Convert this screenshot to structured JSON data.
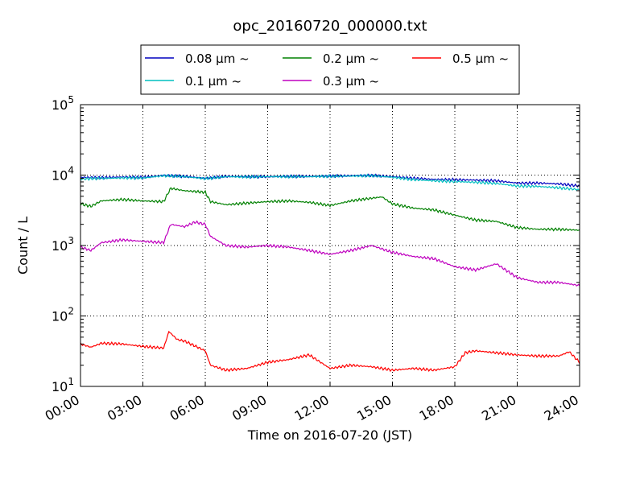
{
  "chart_data": {
    "type": "line",
    "title": "opc_20160720_000000.txt",
    "xlabel": "Time on 2016-07-20 (JST)",
    "ylabel": "Count / L",
    "y_scale": "log",
    "ylim": [
      10,
      100000
    ],
    "xlim": [
      "00:00",
      "24:00"
    ],
    "x_ticks": [
      "00:00",
      "03:00",
      "06:00",
      "09:00",
      "12:00",
      "15:00",
      "18:00",
      "21:00",
      "24:00"
    ],
    "y_ticks": [
      {
        "base": "10",
        "exp": "1"
      },
      {
        "base": "10",
        "exp": "2"
      },
      {
        "base": "10",
        "exp": "3"
      },
      {
        "base": "10",
        "exp": "4"
      },
      {
        "base": "10",
        "exp": "5"
      }
    ],
    "grid": true,
    "legend_position": "above plot",
    "series": [
      {
        "name": "0.08 μm ~",
        "color": "#0000bf",
        "x": [
          "00:00",
          "01:00",
          "02:00",
          "03:00",
          "04:00",
          "05:00",
          "06:00",
          "07:00",
          "08:00",
          "09:00",
          "10:00",
          "11:00",
          "12:00",
          "13:00",
          "14:00",
          "15:00",
          "16:00",
          "17:00",
          "18:00",
          "19:00",
          "20:00",
          "21:00",
          "22:00",
          "23:00",
          "24:00"
        ],
        "y": [
          9300,
          9200,
          9400,
          9300,
          9900,
          9600,
          9000,
          9600,
          9500,
          9500,
          9600,
          9600,
          9700,
          9800,
          9900,
          9500,
          9000,
          8700,
          8600,
          8500,
          8300,
          7700,
          7700,
          7500,
          7000
        ]
      },
      {
        "name": "0.1 μm ~",
        "color": "#00bfbf",
        "x": [
          "00:00",
          "01:00",
          "02:00",
          "03:00",
          "04:00",
          "05:00",
          "06:00",
          "07:00",
          "08:00",
          "09:00",
          "10:00",
          "11:00",
          "12:00",
          "13:00",
          "14:00",
          "15:00",
          "16:00",
          "17:00",
          "18:00",
          "19:00",
          "20:00",
          "21:00",
          "22:00",
          "23:00",
          "24:00"
        ],
        "y": [
          8800,
          9000,
          9100,
          9100,
          9800,
          9500,
          8900,
          9500,
          9400,
          9500,
          9500,
          9500,
          9600,
          9700,
          9800,
          9300,
          8600,
          8300,
          8100,
          7900,
          7600,
          7000,
          6900,
          6600,
          6200
        ]
      },
      {
        "name": "0.2 μm ~",
        "color": "#008000",
        "x": [
          "00:00",
          "00:30",
          "01:00",
          "02:00",
          "03:00",
          "04:00",
          "04:20",
          "05:00",
          "06:00",
          "06:15",
          "07:00",
          "08:00",
          "09:00",
          "10:00",
          "11:00",
          "12:00",
          "13:00",
          "14:00",
          "14:30",
          "15:00",
          "16:00",
          "17:00",
          "18:00",
          "19:00",
          "20:00",
          "21:00",
          "22:00",
          "23:00",
          "24:00"
        ],
        "y": [
          3900,
          3600,
          4300,
          4500,
          4300,
          4200,
          6500,
          6000,
          5700,
          4200,
          3800,
          4000,
          4200,
          4300,
          4100,
          3700,
          4300,
          4700,
          4900,
          3900,
          3400,
          3200,
          2700,
          2300,
          2200,
          1800,
          1700,
          1700,
          1650
        ]
      },
      {
        "name": "0.3 μm ~",
        "color": "#bf00bf",
        "x": [
          "00:00",
          "00:30",
          "01:00",
          "02:00",
          "03:00",
          "04:00",
          "04:20",
          "05:00",
          "05:30",
          "06:00",
          "06:15",
          "07:00",
          "08:00",
          "09:00",
          "10:00",
          "11:00",
          "12:00",
          "13:00",
          "14:00",
          "15:00",
          "16:00",
          "17:00",
          "18:00",
          "19:00",
          "20:00",
          "21:00",
          "22:00",
          "23:00",
          "24:00"
        ],
        "y": [
          950,
          850,
          1100,
          1200,
          1150,
          1100,
          2000,
          1850,
          2150,
          2000,
          1350,
          1000,
          950,
          1000,
          950,
          850,
          750,
          850,
          1000,
          800,
          700,
          650,
          500,
          450,
          550,
          350,
          300,
          300,
          270
        ]
      },
      {
        "name": "0.5 μm ~",
        "color": "#ff0000",
        "x": [
          "00:00",
          "00:30",
          "01:00",
          "02:00",
          "03:00",
          "04:00",
          "04:15",
          "04:40",
          "05:00",
          "06:00",
          "06:15",
          "07:00",
          "08:00",
          "09:00",
          "10:00",
          "11:00",
          "12:00",
          "13:00",
          "14:00",
          "15:00",
          "16:00",
          "17:00",
          "18:00",
          "18:30",
          "19:00",
          "20:00",
          "21:00",
          "22:00",
          "23:00",
          "23:30",
          "24:00"
        ],
        "y": [
          40,
          36,
          41,
          40,
          37,
          35,
          60,
          46,
          44,
          32,
          20,
          17,
          18,
          22,
          24,
          28,
          18,
          20,
          19,
          17,
          18,
          17,
          19,
          30,
          32,
          30,
          28,
          27,
          27,
          31,
          22
        ]
      }
    ]
  }
}
